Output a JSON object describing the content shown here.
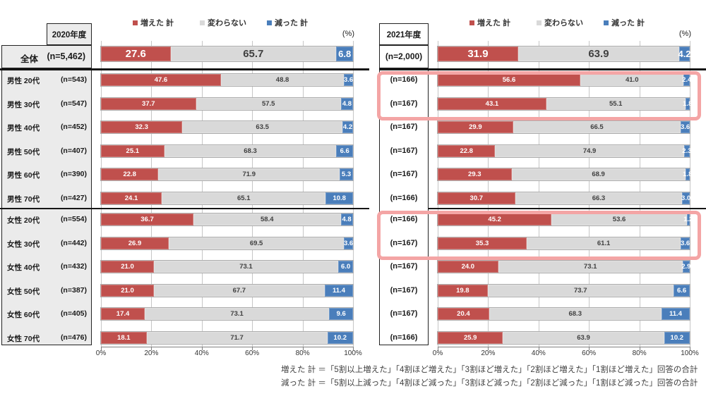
{
  "colors": {
    "increased": "#C0504D",
    "unchanged": "#D9D9D9",
    "decreased": "#4A7EBB",
    "highlight": "#F4A5A5",
    "label_dark": "#404040"
  },
  "footnote": [
    "増えた 計 ＝「5割以上増えた」「4割ほど増えた」「3割ほど増えた」「2割ほど増えた」「1割ほど増えた」回答の合計",
    "減った 計 ＝「5割以上減った」「4割ほど減った」「3割ほど減った」「2割ほど減った」「1割ほど減った」回答の合計"
  ],
  "chart_data": [
    {
      "type": "bar",
      "orientation": "horizontal",
      "stacked": true,
      "title": "2020年度",
      "unit": "(%)",
      "xlim": [
        0,
        100
      ],
      "x_ticks": [
        "0%",
        "20%",
        "40%",
        "60%",
        "80%",
        "100%"
      ],
      "legend": [
        "増えた 計",
        "変わらない",
        "減った 計"
      ],
      "legend_position": "top",
      "grid": true,
      "categories": [
        "全体",
        "男性 20代",
        "男性 30代",
        "男性 40代",
        "男性 50代",
        "男性 60代",
        "男性 70代",
        "女性 20代",
        "女性 30代",
        "女性 40代",
        "女性 50代",
        "女性 60代",
        "女性 70代"
      ],
      "sample_sizes": [
        "(n=5,462)",
        "(n=543)",
        "(n=547)",
        "(n=452)",
        "(n=407)",
        "(n=390)",
        "(n=427)",
        "(n=554)",
        "(n=442)",
        "(n=432)",
        "(n=387)",
        "(n=405)",
        "(n=476)"
      ],
      "series": [
        {
          "name": "増えた 計",
          "values": [
            27.6,
            47.6,
            37.7,
            32.3,
            25.1,
            22.8,
            24.1,
            36.7,
            26.9,
            21.0,
            21.0,
            17.4,
            18.1
          ]
        },
        {
          "name": "変わらない",
          "values": [
            65.7,
            48.8,
            57.5,
            63.5,
            68.3,
            71.9,
            65.1,
            58.4,
            69.5,
            73.1,
            67.7,
            73.1,
            71.7
          ]
        },
        {
          "name": "減った 計",
          "values": [
            6.8,
            3.6,
            4.8,
            4.2,
            6.6,
            5.3,
            10.8,
            4.8,
            3.6,
            6.0,
            11.4,
            9.6,
            10.2
          ]
        }
      ],
      "highlight_boxes": []
    },
    {
      "type": "bar",
      "orientation": "horizontal",
      "stacked": true,
      "title": "2021年度",
      "unit": "(%)",
      "xlim": [
        0,
        100
      ],
      "x_ticks": [
        "0%",
        "20%",
        "40%",
        "60%",
        "80%",
        "100%"
      ],
      "legend": [
        "増えた 計",
        "変わらない",
        "減った 計"
      ],
      "legend_position": "top",
      "grid": true,
      "categories": [
        "全体",
        "男性 20代",
        "男性 30代",
        "男性 40代",
        "男性 50代",
        "男性 60代",
        "男性 70代",
        "女性 20代",
        "女性 30代",
        "女性 40代",
        "女性 50代",
        "女性 60代",
        "女性 70代"
      ],
      "sample_sizes": [
        "(n=2,000)",
        "(n=166)",
        "(n=167)",
        "(n=167)",
        "(n=167)",
        "(n=167)",
        "(n=166)",
        "(n=166)",
        "(n=167)",
        "(n=167)",
        "(n=167)",
        "(n=167)",
        "(n=166)"
      ],
      "series": [
        {
          "name": "増えた 計",
          "values": [
            31.9,
            56.6,
            43.1,
            29.9,
            22.8,
            29.3,
            30.7,
            45.2,
            35.3,
            24.0,
            19.8,
            20.4,
            25.9
          ]
        },
        {
          "name": "変わらない",
          "values": [
            63.9,
            41.0,
            55.1,
            66.5,
            74.9,
            68.9,
            66.3,
            53.6,
            61.1,
            73.1,
            73.7,
            68.3,
            63.9
          ]
        },
        {
          "name": "減った 計",
          "values": [
            4.2,
            2.4,
            1.8,
            3.6,
            2.3,
            1.8,
            3.0,
            1.2,
            3.6,
            2.9,
            6.6,
            11.4,
            10.2
          ]
        }
      ],
      "highlight_boxes": [
        [
          1,
          2
        ],
        [
          7,
          8
        ]
      ]
    }
  ]
}
